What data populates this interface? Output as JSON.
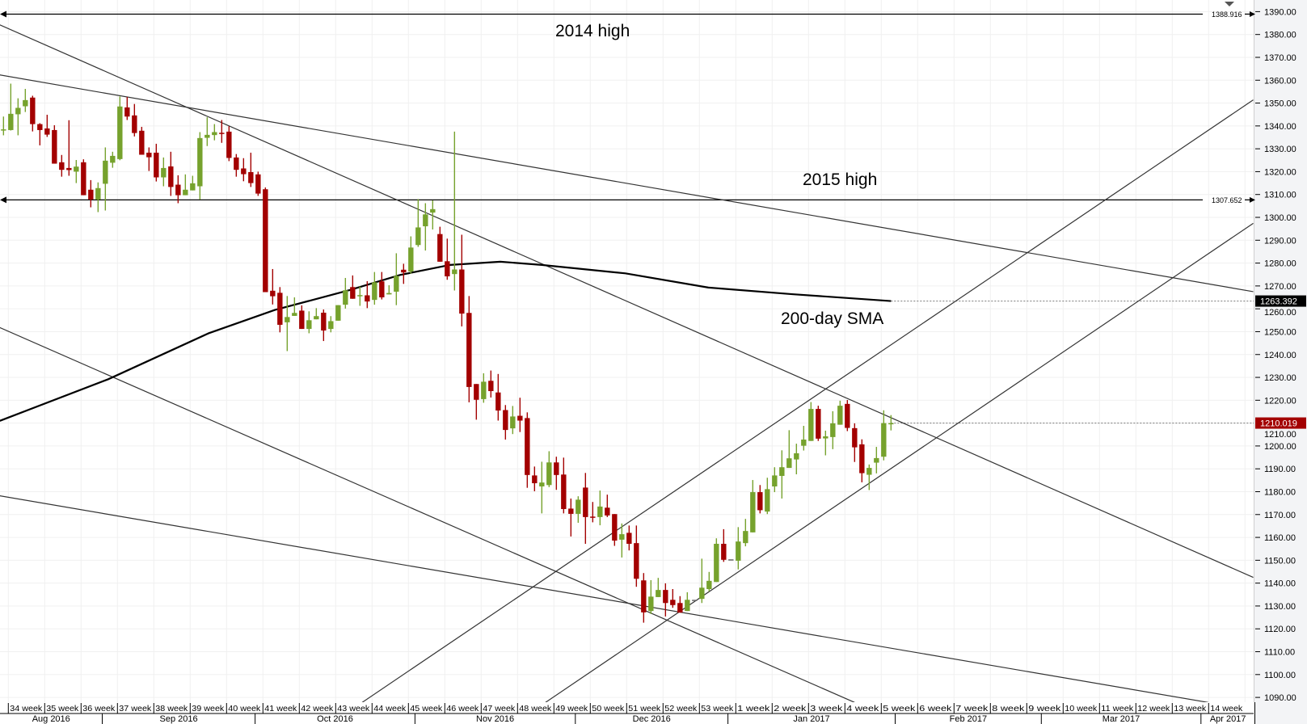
{
  "chart_data": {
    "type": "candlestick",
    "title": "",
    "xlabel": "",
    "ylabel": "",
    "ylim": [
      1090,
      1390
    ],
    "yticks": [
      1090,
      1100,
      1110,
      1120,
      1130,
      1140,
      1150,
      1160,
      1170,
      1180,
      1190,
      1200,
      1210,
      1220,
      1230,
      1240,
      1250,
      1260,
      1270,
      1280,
      1290,
      1300,
      1310,
      1320,
      1330,
      1340,
      1350,
      1360,
      1370,
      1380,
      1390
    ],
    "grid": true,
    "colors": {
      "up": "#76a22d",
      "down": "#a30000",
      "flat": "#666666",
      "sma": "#000000",
      "trend": "#333333",
      "last_price_bg": "#a30000",
      "sma_price_bg": "#000000"
    },
    "week_labels": [
      "34 week",
      "35 week",
      "36 week",
      "37 week",
      "38 week",
      "39 week",
      "40 week",
      "41 week",
      "42 week",
      "43 week",
      "44 week",
      "45 week",
      "46 week",
      "47 week",
      "48 week",
      "49 week",
      "50 week",
      "51 week",
      "52 week",
      "53 week",
      "1 week",
      "2 week",
      "3 week",
      "4 week",
      "5 week",
      "6 week",
      "7 week",
      "8 week",
      "9 week",
      "10 week",
      "11 week",
      "12 week",
      "13 week",
      "14 week"
    ],
    "month_labels": [
      "Aug 2016",
      "Sep 2016",
      "Oct 2016",
      "Nov 2016",
      "Dec 2016",
      "Jan 2017",
      "Feb 2017",
      "Mar 2017",
      "Apr 2017"
    ],
    "ohlc_fields": [
      "open",
      "high",
      "low",
      "close"
    ],
    "candles": [
      [
        1338.0,
        1344.1,
        1335.9,
        1338.5
      ],
      [
        1338.2,
        1358.5,
        1338.0,
        1345.3
      ],
      [
        1345.1,
        1352.1,
        1335.9,
        1347.9
      ],
      [
        1348.6,
        1356.2,
        1346.1,
        1351.3
      ],
      [
        1352.4,
        1353.2,
        1337.6,
        1340.8
      ],
      [
        1340.8,
        1341.2,
        1331.5,
        1338.2
      ],
      [
        1338.9,
        1344.9,
        1335.2,
        1336.2
      ],
      [
        1338.2,
        1340.3,
        1323.5,
        1323.5
      ],
      [
        1324.1,
        1327.3,
        1317.8,
        1320.8
      ],
      [
        1321.6,
        1342.5,
        1318.2,
        1320.7
      ],
      [
        1320.0,
        1325.1,
        1315.0,
        1322.2
      ],
      [
        1324.1,
        1325.4,
        1309.7,
        1309.7
      ],
      [
        1312.1,
        1316.3,
        1304.4,
        1307.8
      ],
      [
        1307.8,
        1315.3,
        1302.3,
        1312.8
      ],
      [
        1314.7,
        1330.6,
        1303.0,
        1324.8
      ],
      [
        1323.9,
        1328.7,
        1321.7,
        1326.9
      ],
      [
        1325.5,
        1352.9,
        1325.0,
        1348.5
      ],
      [
        1348.1,
        1352.7,
        1342.6,
        1344.1
      ],
      [
        1344.6,
        1349.6,
        1335.4,
        1336.9
      ],
      [
        1337.9,
        1339.6,
        1327.4,
        1327.4
      ],
      [
        1328.3,
        1330.6,
        1320.3,
        1326.3
      ],
      [
        1328.3,
        1332.2,
        1315.7,
        1317.5
      ],
      [
        1317.5,
        1326.2,
        1313.6,
        1321.6
      ],
      [
        1322.3,
        1328.7,
        1309.4,
        1313.3
      ],
      [
        1314.3,
        1318.4,
        1306.2,
        1309.7
      ],
      [
        1309.7,
        1318.8,
        1309.7,
        1312.1
      ],
      [
        1311.8,
        1318.2,
        1311.8,
        1314.9
      ],
      [
        1313.6,
        1337.3,
        1307.8,
        1334.7
      ],
      [
        1334.8,
        1343.8,
        1331.2,
        1336.1
      ],
      [
        1336.0,
        1340.8,
        1333.7,
        1337.3
      ],
      [
        1337.0,
        1342.6,
        1332.6,
        1336.7
      ],
      [
        1337.5,
        1339.9,
        1324.6,
        1326.0
      ],
      [
        1326.2,
        1327.7,
        1317.8,
        1320.8
      ],
      [
        1321.4,
        1325.9,
        1315.8,
        1318.9
      ],
      [
        1319.8,
        1328.3,
        1313.3,
        1315.0
      ],
      [
        1318.8,
        1320.0,
        1309.4,
        1310.4
      ],
      [
        1312.3,
        1313.1,
        1267.3,
        1267.3
      ],
      [
        1267.9,
        1277.4,
        1261.9,
        1265.5
      ],
      [
        1267.0,
        1269.5,
        1249.7,
        1253.0
      ],
      [
        1254.1,
        1265.6,
        1241.5,
        1256.4
      ],
      [
        1256.9,
        1265.0,
        1256.9,
        1258.2
      ],
      [
        1259.2,
        1261.5,
        1251.2,
        1251.2
      ],
      [
        1251.2,
        1258.9,
        1249.3,
        1255.0
      ],
      [
        1255.4,
        1260.3,
        1255.4,
        1256.8
      ],
      [
        1258.3,
        1259.7,
        1245.9,
        1250.5
      ],
      [
        1251.2,
        1256.8,
        1249.7,
        1254.6
      ],
      [
        1254.8,
        1261.6,
        1254.8,
        1261.6
      ],
      [
        1261.8,
        1273.5,
        1260.1,
        1268.1
      ],
      [
        1269.5,
        1274.6,
        1264.4,
        1264.4
      ],
      [
        1265.9,
        1269.7,
        1261.3,
        1266.0
      ],
      [
        1265.9,
        1272.1,
        1260.3,
        1263.2
      ],
      [
        1263.9,
        1276.1,
        1261.8,
        1271.6
      ],
      [
        1272.0,
        1276.1,
        1264.1,
        1265.0
      ],
      [
        1266.3,
        1270.3,
        1266.3,
        1266.9
      ],
      [
        1267.5,
        1284.3,
        1261.6,
        1274.4
      ],
      [
        1277.1,
        1279.7,
        1270.9,
        1275.9
      ],
      [
        1276.3,
        1291.7,
        1275.4,
        1286.8
      ],
      [
        1287.9,
        1308.0,
        1287.1,
        1295.6
      ],
      [
        1296.1,
        1306.2,
        1285.5,
        1301.3
      ],
      [
        1302.1,
        1307.4,
        1294.7,
        1303.6
      ],
      [
        1292.7,
        1295.9,
        1280.6,
        1280.6
      ],
      [
        1280.8,
        1290.7,
        1272.7,
        1274.2
      ],
      [
        1275.2,
        1337.5,
        1268.0,
        1277.2
      ],
      [
        1277.2,
        1292.4,
        1252.3,
        1257.9
      ],
      [
        1258.2,
        1265.6,
        1219.1,
        1225.8
      ],
      [
        1227.1,
        1227.1,
        1211.5,
        1220.2
      ],
      [
        1220.5,
        1231.8,
        1218.9,
        1228.1
      ],
      [
        1228.5,
        1233.0,
        1221.2,
        1224.0
      ],
      [
        1223.4,
        1231.5,
        1211.1,
        1215.5
      ],
      [
        1215.7,
        1217.9,
        1202.8,
        1207.0
      ],
      [
        1207.7,
        1217.5,
        1205.2,
        1212.9
      ],
      [
        1213.2,
        1221.1,
        1206.1,
        1211.1
      ],
      [
        1212.2,
        1214.7,
        1181.7,
        1187.3
      ],
      [
        1187.1,
        1191.0,
        1180.2,
        1183.7
      ],
      [
        1182.3,
        1193.1,
        1170.5,
        1184.0
      ],
      [
        1182.9,
        1197.7,
        1182.0,
        1192.8
      ],
      [
        1192.8,
        1195.3,
        1180.8,
        1187.3
      ],
      [
        1187.5,
        1194.9,
        1170.5,
        1172.4
      ],
      [
        1172.6,
        1177.0,
        1160.4,
        1170.3
      ],
      [
        1170.3,
        1178.0,
        1166.4,
        1176.5
      ],
      [
        1181.8,
        1188.2,
        1157.2,
        1168.9
      ],
      [
        1169.1,
        1175.5,
        1166.6,
        1169.0
      ],
      [
        1168.9,
        1180.5,
        1165.3,
        1173.5
      ],
      [
        1173.0,
        1178.7,
        1168.9,
        1169.6
      ],
      [
        1170.2,
        1170.2,
        1156.3,
        1158.6
      ],
      [
        1159.0,
        1166.1,
        1151.2,
        1161.4
      ],
      [
        1162.0,
        1165.2,
        1154.3,
        1157.2
      ],
      [
        1157.5,
        1165.2,
        1138.4,
        1141.9
      ],
      [
        1141.2,
        1144.4,
        1122.7,
        1127.2
      ],
      [
        1127.8,
        1141.3,
        1126.5,
        1134.1
      ],
      [
        1133.9,
        1142.3,
        1133.9,
        1137.0
      ],
      [
        1137.0,
        1139.9,
        1125.4,
        1131.3
      ],
      [
        1132.7,
        1137.4,
        1129.2,
        1130.4
      ],
      [
        1131.3,
        1134.3,
        1127.1,
        1127.1
      ],
      [
        1127.8,
        1136.0,
        1127.8,
        1132.7
      ],
      [
        1132.7,
        1132.7,
        1132.7,
        1132.7
      ],
      [
        1133.1,
        1150.7,
        1131.3,
        1138.0
      ],
      [
        1137.4,
        1144.9,
        1136.4,
        1141.0
      ],
      [
        1140.5,
        1159.6,
        1140.5,
        1157.2
      ],
      [
        1157.2,
        1163.6,
        1149.3,
        1150.2
      ],
      [
        1150.4,
        1150.4,
        1150.4,
        1150.4
      ],
      [
        1149.8,
        1164.5,
        1146.0,
        1158.2
      ],
      [
        1157.5,
        1168.1,
        1156.1,
        1162.8
      ],
      [
        1162.2,
        1185.1,
        1162.2,
        1179.8
      ],
      [
        1179.8,
        1182.9,
        1170.5,
        1171.9
      ],
      [
        1171.3,
        1186.1,
        1170.2,
        1181.1
      ],
      [
        1182.3,
        1190.7,
        1179.8,
        1187.1
      ],
      [
        1186.9,
        1198.1,
        1177.0,
        1190.7
      ],
      [
        1190.4,
        1206.9,
        1190.4,
        1194.6
      ],
      [
        1194.1,
        1201.0,
        1187.6,
        1196.8
      ],
      [
        1200.1,
        1208.8,
        1198.0,
        1202.8
      ],
      [
        1202.2,
        1219.2,
        1202.2,
        1216.2
      ],
      [
        1216.2,
        1217.6,
        1202.2,
        1203.2
      ],
      [
        1203.3,
        1206.7,
        1195.9,
        1204.2
      ],
      [
        1203.9,
        1215.2,
        1198.6,
        1209.9
      ],
      [
        1209.3,
        1219.8,
        1209.3,
        1217.6
      ],
      [
        1218.4,
        1220.1,
        1206.5,
        1207.9
      ],
      [
        1207.8,
        1209.9,
        1193.0,
        1199.4
      ],
      [
        1200.7,
        1202.9,
        1184.1,
        1188.1
      ],
      [
        1187.4,
        1191.9,
        1180.7,
        1190.4
      ],
      [
        1192.7,
        1199.6,
        1188.0,
        1194.7
      ],
      [
        1195.3,
        1215.6,
        1193.7,
        1210.0
      ],
      [
        1209.8,
        1213.5,
        1206.8,
        1210.0
      ]
    ],
    "sma_200": {
      "label": "200-day SMA",
      "last_value": "1263.392",
      "points": [
        [
          0.5,
          1211.0
        ],
        [
          15.4,
          1229.2
        ],
        [
          29.2,
          1249.3
        ],
        [
          38.3,
          1259.5
        ],
        [
          48.6,
          1268.2
        ],
        [
          55.5,
          1274.8
        ],
        [
          62.4,
          1279.2
        ],
        [
          69.3,
          1280.6
        ],
        [
          75.0,
          1279.2
        ],
        [
          86.5,
          1275.5
        ],
        [
          97.9,
          1269.3
        ],
        [
          109.4,
          1266.4
        ],
        [
          123,
          1263.4
        ]
      ]
    },
    "last_price": "1210.019",
    "horizontal_levels": [
      {
        "name": "2014 high",
        "value": 1388.916,
        "label": "1388.916"
      },
      {
        "name": "2015 high",
        "value": 1307.652,
        "label": "1307.652"
      }
    ],
    "trendlines": [
      {
        "name": "resistance-upper",
        "from": [
          0.5,
          1362.3
        ],
        "to": [
          172.8,
          1267.5
        ]
      },
      {
        "name": "resistance-steep",
        "from": [
          0.5,
          1384.2
        ],
        "to": [
          172.8,
          1142.5
        ]
      },
      {
        "name": "support-lower-steep",
        "from": [
          0.5,
          1251.8
        ],
        "to": [
          118,
          1087.8
        ]
      },
      {
        "name": "support-lower-shallow",
        "from": [
          0.5,
          1178.2
        ],
        "to": [
          166.6,
          1087.8
        ]
      },
      {
        "name": "channel-upper",
        "from": [
          50.3,
          1087.8
        ],
        "to": [
          172.8,
          1351.4
        ]
      },
      {
        "name": "channel-lower",
        "from": [
          75.5,
          1087.8
        ],
        "to": [
          172.8,
          1297.4
        ]
      }
    ],
    "annotations": {
      "high_2014": "2014 high",
      "high_2015": "2015 high",
      "sma": "200-day SMA"
    }
  }
}
